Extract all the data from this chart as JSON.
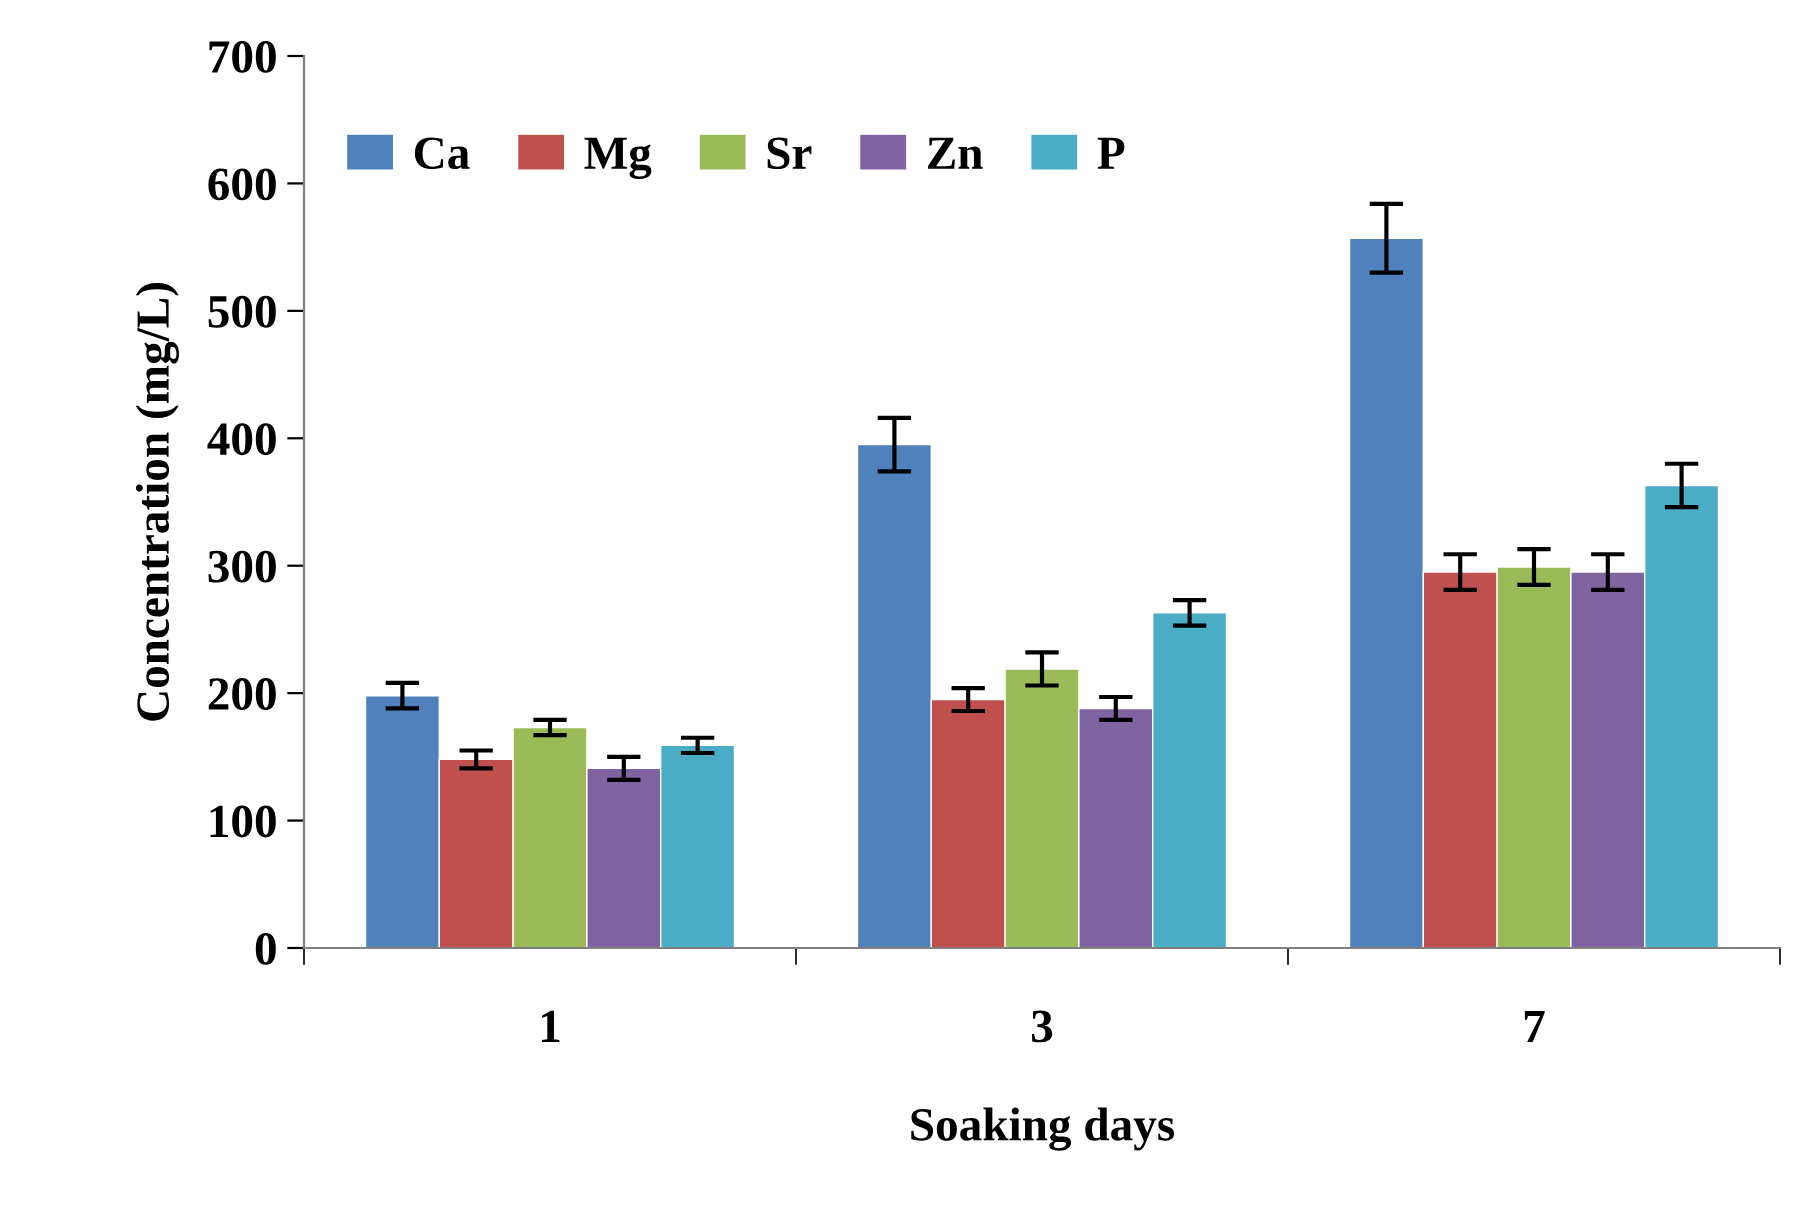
{
  "chart_data": {
    "type": "bar",
    "xlabel": "Soaking days",
    "ylabel": "Concentration (mg/L)",
    "categories": [
      "1",
      "3",
      "7"
    ],
    "series": [
      {
        "name": "Ca",
        "color": "#4f81bd",
        "values": [
          198,
          395,
          557
        ],
        "errors": [
          10,
          21,
          27
        ]
      },
      {
        "name": "Mg",
        "color": "#c0504d",
        "values": [
          148,
          195,
          295
        ],
        "errors": [
          7,
          9,
          14
        ]
      },
      {
        "name": "Sr",
        "color": "#9bbb59",
        "values": [
          173,
          219,
          299
        ],
        "errors": [
          6,
          13,
          14
        ]
      },
      {
        "name": "Zn",
        "color": "#8064a2",
        "values": [
          141,
          188,
          295
        ],
        "errors": [
          9,
          9,
          14
        ]
      },
      {
        "name": "P",
        "color": "#4bacc6",
        "values": [
          159,
          263,
          363
        ],
        "errors": [
          6,
          10,
          17
        ]
      }
    ],
    "ylim": [
      0,
      700
    ],
    "yticks": [
      0,
      100,
      200,
      300,
      400,
      500,
      600,
      700
    ],
    "grid": false,
    "legend": "top left"
  }
}
